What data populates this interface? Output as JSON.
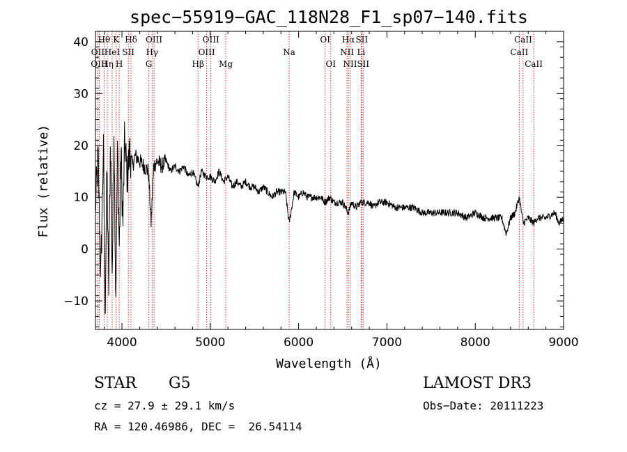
{
  "chart_data": {
    "type": "line",
    "title": "spec−55919−GAC_118N28_F1_sp07−140.fits",
    "xlabel": "Wavelength (Å)",
    "ylabel": "Flux (relative)",
    "xlim": [
      3700,
      9000
    ],
    "ylim": [
      -15.5,
      42
    ],
    "xticks": [
      4000,
      5000,
      6000,
      7000,
      8000,
      9000
    ],
    "yticks": [
      -10,
      0,
      10,
      20,
      30,
      40
    ],
    "grid": false,
    "spectrum": {
      "name": "flux",
      "x": [
        3700,
        3730,
        3760,
        3790,
        3810,
        3830,
        3850,
        3870,
        3890,
        3910,
        3930,
        3950,
        3970,
        3990,
        4010,
        4030,
        4060,
        4090,
        4120,
        4150,
        4200,
        4250,
        4300,
        4330,
        4360,
        4400,
        4450,
        4500,
        4550,
        4600,
        4650,
        4700,
        4750,
        4800,
        4861,
        4900,
        4950,
        5000,
        5050,
        5100,
        5150,
        5200,
        5250,
        5300,
        5350,
        5400,
        5450,
        5500,
        5550,
        5600,
        5650,
        5700,
        5750,
        5800,
        5850,
        5893,
        5950,
        6000,
        6050,
        6100,
        6150,
        6200,
        6250,
        6300,
        6350,
        6400,
        6450,
        6500,
        6563,
        6600,
        6650,
        6700,
        6750,
        6800,
        6850,
        6900,
        6950,
        7000,
        7100,
        7200,
        7300,
        7400,
        7500,
        7600,
        7700,
        7800,
        7900,
        8000,
        8100,
        8200,
        8300,
        8350,
        8400,
        8450,
        8498,
        8542,
        8600,
        8662,
        8700,
        8800,
        8900,
        8950,
        9000
      ],
      "y": [
        8,
        18,
        -6,
        20,
        -12,
        16,
        -8,
        22,
        -5,
        24,
        -10,
        20,
        0,
        19,
        4,
        21,
        14,
        19,
        16,
        18,
        17,
        16,
        15,
        5,
        16,
        17,
        16,
        17,
        15,
        16,
        15,
        16,
        14,
        15,
        12,
        15,
        14,
        14,
        13,
        15,
        13,
        14,
        12,
        13,
        12,
        13,
        12,
        12,
        11,
        12,
        11,
        10,
        11,
        11,
        11,
        5,
        11,
        10,
        11,
        10,
        10,
        10,
        10,
        9,
        10,
        9,
        9,
        9,
        7,
        9,
        8,
        9,
        9,
        9,
        8,
        9,
        9,
        9,
        8,
        8,
        8,
        7,
        7,
        7,
        7,
        7,
        6,
        7,
        6,
        6,
        6,
        3,
        6,
        7,
        10,
        5,
        6,
        5,
        6,
        6,
        7,
        5,
        6
      ]
    },
    "spectral_lines": [
      {
        "label": "Hθ",
        "wavelength": 3798,
        "row": 0
      },
      {
        "label": "OII",
        "wavelength": 3727,
        "row": 1
      },
      {
        "label": "OIII",
        "wavelength": 3743,
        "row": 2
      },
      {
        "label": "Hη",
        "wavelength": 3835,
        "row": 2
      },
      {
        "label": "HeI",
        "wavelength": 3889,
        "row": 1
      },
      {
        "label": "K",
        "wavelength": 3934,
        "row": 0
      },
      {
        "label": "H",
        "wavelength": 3969,
        "row": 2
      },
      {
        "label": "SII",
        "wavelength": 4072,
        "row": 1
      },
      {
        "label": "Hδ",
        "wavelength": 4102,
        "row": 0
      },
      {
        "label": "G",
        "wavelength": 4305,
        "row": 2
      },
      {
        "label": "Hγ",
        "wavelength": 4341,
        "row": 1
      },
      {
        "label": "OIII",
        "wavelength": 4363,
        "row": 0
      },
      {
        "label": "Hβ",
        "wavelength": 4861,
        "row": 2
      },
      {
        "label": "OIII",
        "wavelength": 4959,
        "row": 1
      },
      {
        "label": "OIII",
        "wavelength": 5007,
        "row": 0
      },
      {
        "label": "Mg",
        "wavelength": 5175,
        "row": 2
      },
      {
        "label": "Na",
        "wavelength": 5893,
        "row": 1
      },
      {
        "label": "OI",
        "wavelength": 6300,
        "row": 0
      },
      {
        "label": "OI",
        "wavelength": 6364,
        "row": 2
      },
      {
        "label": "NII",
        "wavelength": 6548,
        "row": 1
      },
      {
        "label": "Hα",
        "wavelength": 6563,
        "row": 0
      },
      {
        "label": "NII",
        "wavelength": 6583,
        "row": 2
      },
      {
        "label": "Li",
        "wavelength": 6708,
        "row": 1
      },
      {
        "label": "SII",
        "wavelength": 6716,
        "row": 0
      },
      {
        "label": "SII",
        "wavelength": 6731,
        "row": 2
      },
      {
        "label": "CaII",
        "wavelength": 8498,
        "row": 1
      },
      {
        "label": "CaII",
        "wavelength": 8542,
        "row": 0
      },
      {
        "label": "CaII",
        "wavelength": 8662,
        "row": 2
      }
    ]
  },
  "colors": {
    "spectrum": "#000000",
    "line_markers": "#cc0000",
    "axes": "#000000",
    "background": "#ffffff"
  },
  "info": {
    "class": "STAR",
    "subclass": "G5",
    "survey": "LAMOST DR3",
    "cz": "cz = 27.9 ± 29.1 km/s",
    "obs_date": "Obs−Date: 20111223",
    "coords": "RA = 120.46986, DEC =  26.54114"
  }
}
